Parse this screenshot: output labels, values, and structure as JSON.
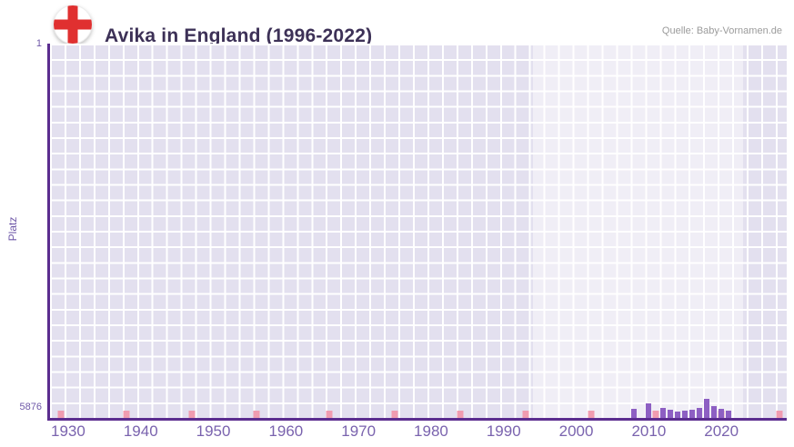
{
  "header": {
    "title": "Avika in England (1996-2022)",
    "source": "Quelle: Baby-Vornamen.de"
  },
  "chart_data": {
    "type": "bar",
    "title": "Avika in England (1996-2022)",
    "ylabel": "Platz",
    "y_axis": {
      "min": 1,
      "max": 5876,
      "inverted": true,
      "top_tick_label": "1",
      "bottom_tick_label": "5876"
    },
    "x_axis": {
      "range": [
        1927.5,
        2029
      ],
      "ticks": [
        1930,
        1940,
        1950,
        1960,
        1970,
        1980,
        1990,
        2000,
        2010,
        2020
      ]
    },
    "series": [
      {
        "name": "Platz",
        "points": [
          {
            "year": 2008,
            "rank": 5730
          },
          {
            "year": 2010,
            "rank": 5650
          },
          {
            "year": 2012,
            "rank": 5715
          },
          {
            "year": 2013,
            "rank": 5745
          },
          {
            "year": 2014,
            "rank": 5775
          },
          {
            "year": 2015,
            "rank": 5760
          },
          {
            "year": 2016,
            "rank": 5745
          },
          {
            "year": 2017,
            "rank": 5715
          },
          {
            "year": 2018,
            "rank": 5575
          },
          {
            "year": 2019,
            "rank": 5690
          },
          {
            "year": 2020,
            "rank": 5730
          },
          {
            "year": 2021,
            "rank": 5760
          }
        ]
      }
    ],
    "no_data_mark_years": [
      1929,
      1938,
      1947,
      1956,
      1966,
      1975,
      1984,
      1993,
      2002,
      2011,
      2020,
      2028
    ],
    "highlight_region": {
      "from": 1994,
      "to": 2023
    },
    "colors": {
      "bar": "#8d5fc3",
      "no_data_mark": "#f09cb0",
      "plot_bg": "#e3e0ef",
      "grid": "#ffffff",
      "axis": "#5b2d8f",
      "tick_label": "#7a63ae",
      "highlight_overlay": "rgba(255,255,255,0.45)",
      "title_text": "#3d3157",
      "flag_red": "#e03030"
    }
  }
}
